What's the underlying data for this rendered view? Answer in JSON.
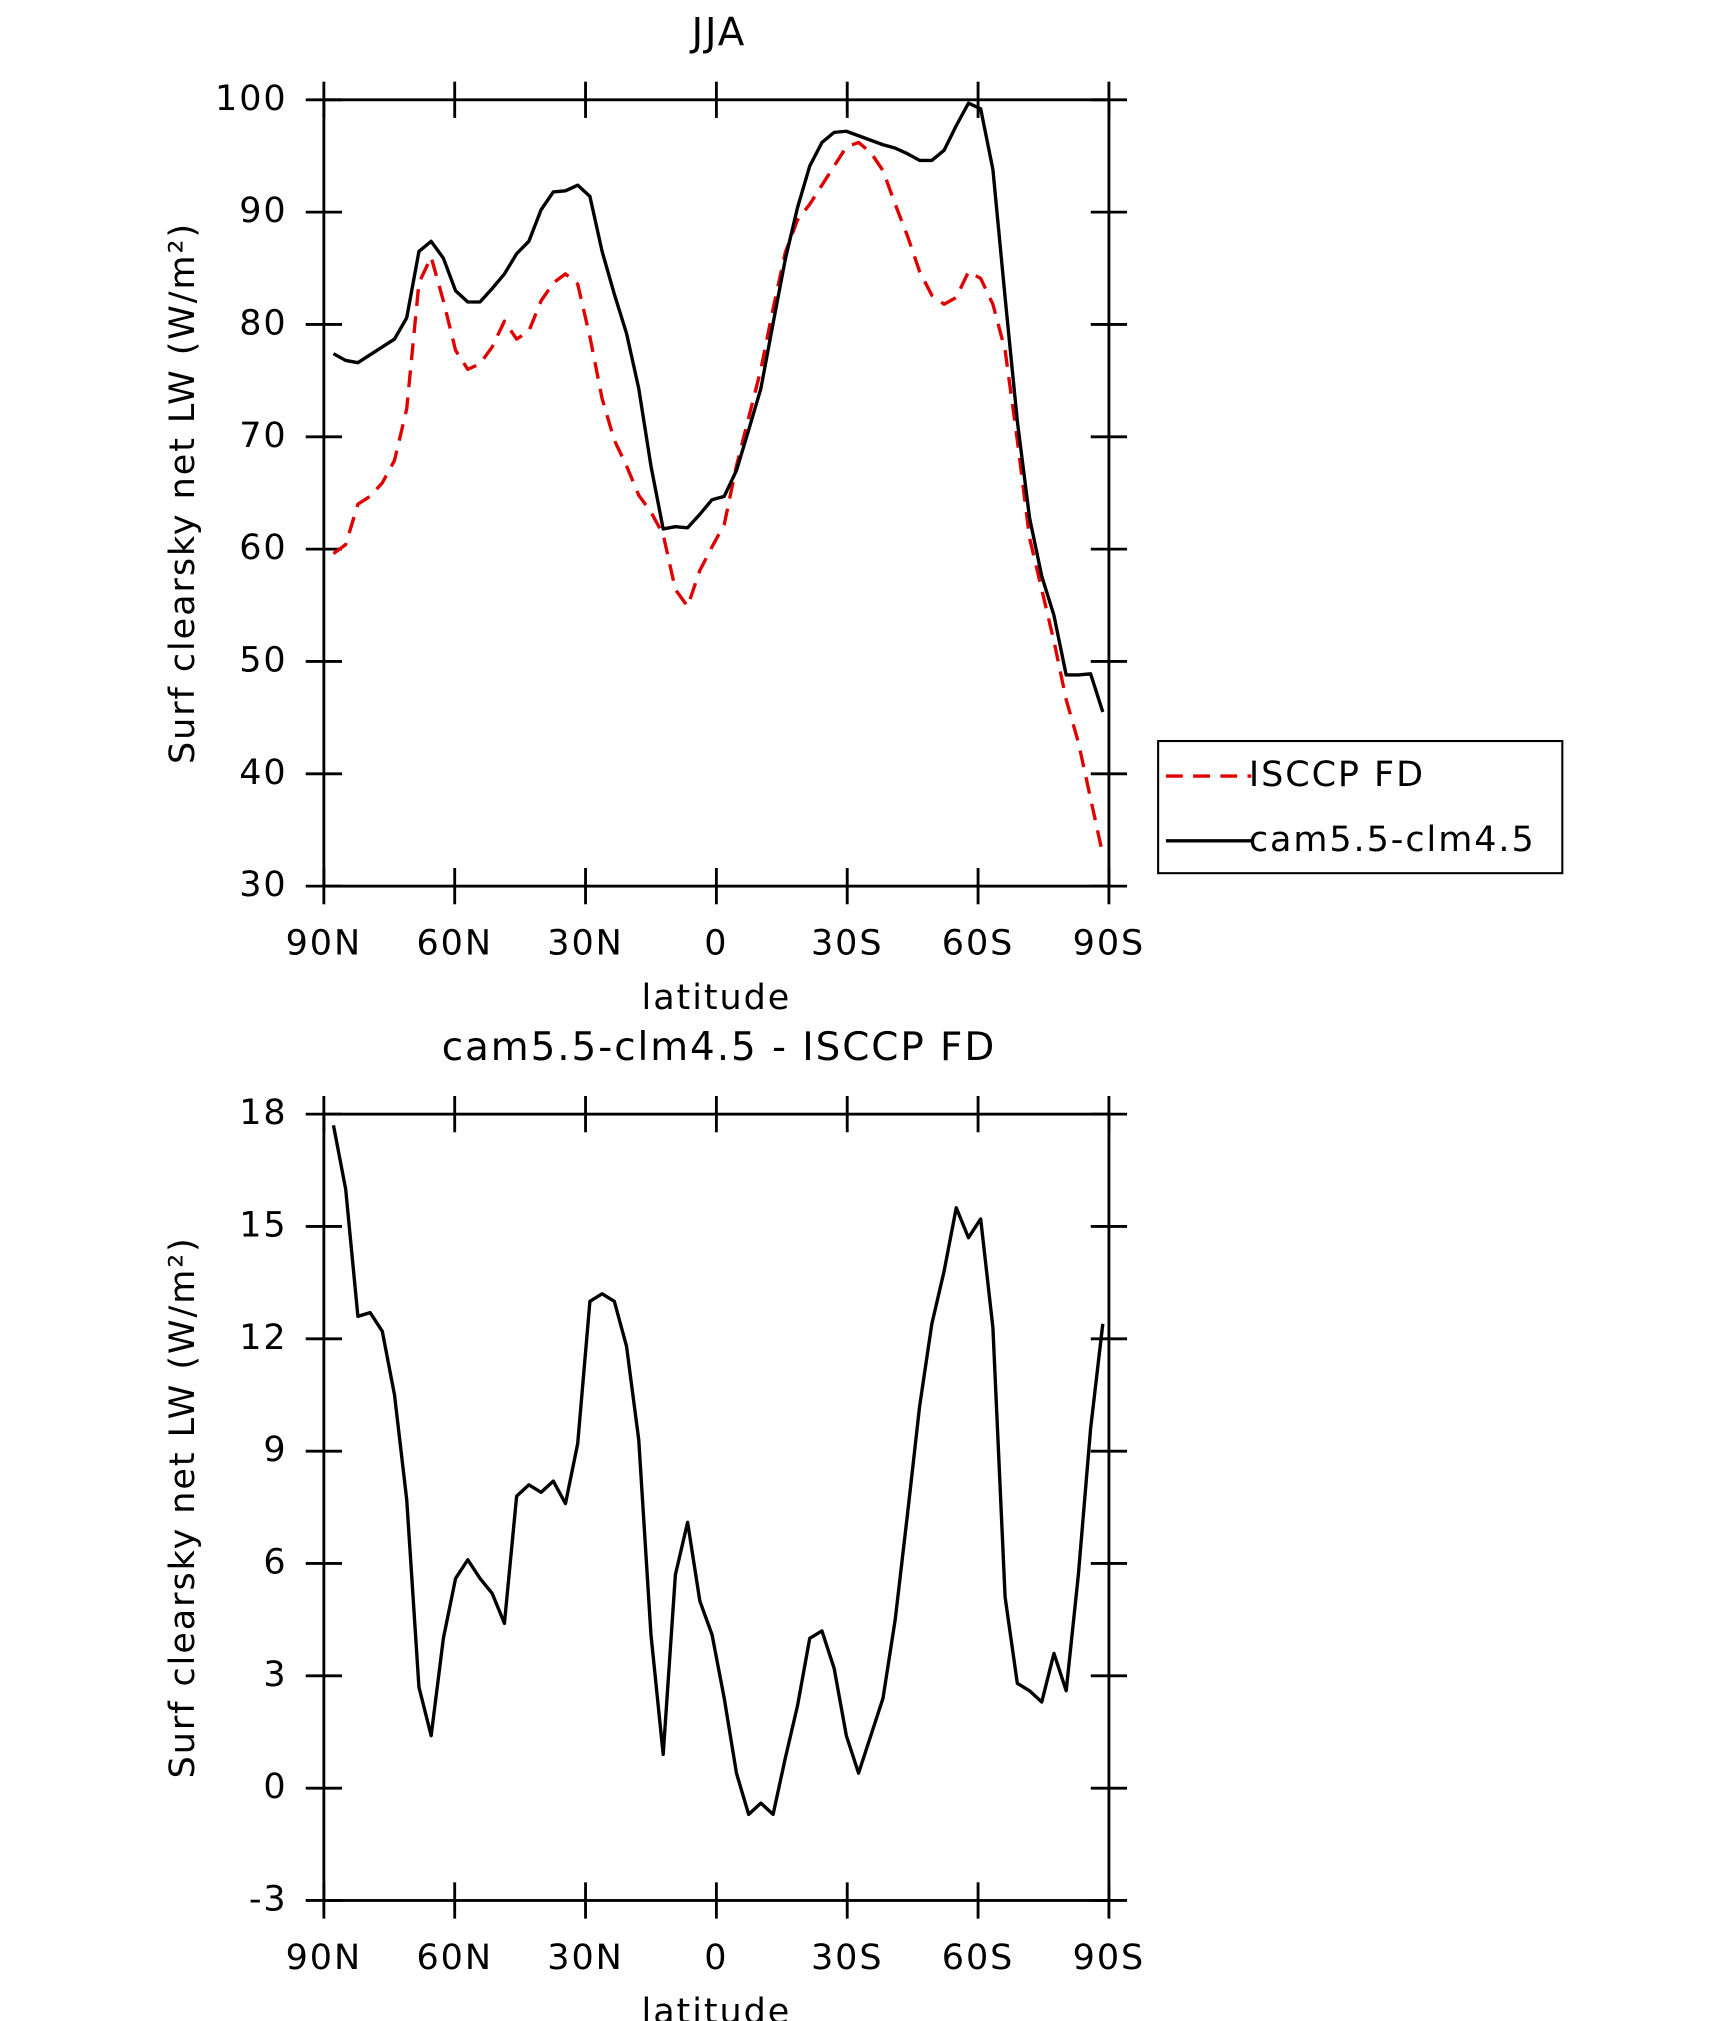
{
  "chart_data": [
    {
      "type": "line",
      "title": "JJA",
      "xlabel": "latitude",
      "ylabel": "Surf clearsky net LW (W/m²)",
      "x": [
        87.8,
        85.0,
        82.2,
        79.4,
        76.6,
        73.8,
        71.0,
        68.2,
        65.4,
        62.6,
        59.8,
        57.0,
        54.2,
        51.4,
        48.6,
        45.8,
        43.0,
        40.2,
        37.4,
        34.6,
        31.8,
        29.0,
        26.2,
        23.4,
        20.6,
        17.8,
        15.0,
        12.2,
        9.4,
        6.6,
        3.8,
        1.0,
        -1.8,
        -4.6,
        -7.4,
        -10.2,
        -13.0,
        -15.8,
        -18.6,
        -21.4,
        -24.2,
        -27.0,
        -29.8,
        -32.6,
        -35.4,
        -38.2,
        -41.0,
        -43.8,
        -46.6,
        -49.4,
        -52.2,
        -55.0,
        -57.8,
        -60.6,
        -63.4,
        -66.2,
        -69.0,
        -71.8,
        -74.6,
        -77.4,
        -80.2,
        -83.0,
        -85.8,
        -88.6
      ],
      "series": [
        {
          "name": "ISCCP FD",
          "color": "#e00000",
          "dashed": true,
          "values": [
            59.6,
            60.4,
            64.0,
            64.7,
            65.9,
            67.9,
            72.5,
            83.7,
            86.0,
            82.1,
            77.7,
            76.0,
            76.5,
            78.0,
            80.3,
            78.7,
            79.4,
            82.1,
            83.7,
            84.5,
            83.6,
            78.9,
            73.4,
            69.7,
            67.4,
            64.8,
            63.3,
            61.3,
            56.4,
            54.9,
            58.1,
            60.2,
            62.2,
            67.4,
            71.7,
            76.0,
            81.4,
            86.4,
            89.3,
            90.7,
            92.4,
            94.1,
            95.8,
            96.2,
            95.3,
            93.7,
            90.7,
            87.9,
            84.7,
            82.6,
            81.8,
            82.4,
            84.7,
            84.1,
            81.8,
            77.7,
            69.7,
            61.0,
            56.4,
            51.8,
            46.6,
            42.8,
            37.8,
            32.8
          ]
        },
        {
          "name": "cam5.5-clm4.5",
          "color": "#000000",
          "dashed": false,
          "values": [
            77.4,
            76.8,
            76.6,
            77.3,
            78.0,
            78.7,
            80.6,
            86.5,
            87.4,
            85.9,
            83.0,
            82.0,
            82.0,
            83.2,
            84.5,
            86.3,
            87.4,
            90.2,
            91.8,
            91.9,
            92.4,
            91.4,
            86.5,
            82.7,
            79.2,
            74.3,
            67.4,
            61.8,
            62.0,
            61.9,
            63.1,
            64.4,
            64.7,
            67.0,
            70.6,
            74.3,
            80.1,
            85.8,
            90.4,
            94.1,
            96.2,
            97.1,
            97.2,
            96.8,
            96.4,
            96.0,
            95.7,
            95.2,
            94.6,
            94.6,
            95.5,
            97.7,
            99.7,
            99.2,
            93.8,
            82.4,
            71.4,
            62.8,
            57.6,
            54.1,
            48.8,
            48.8,
            48.9,
            45.5
          ]
        }
      ],
      "xlim": [
        90,
        -90
      ],
      "xticks": [
        {
          "value": 90,
          "label": "90N"
        },
        {
          "value": 60,
          "label": "60N"
        },
        {
          "value": 30,
          "label": "30N"
        },
        0,
        {
          "value": -30,
          "label": "30S"
        },
        {
          "value": -60,
          "label": "60S"
        },
        {
          "value": -90,
          "label": "90S"
        }
      ],
      "ylim": [
        30,
        100
      ],
      "yticks": [
        30,
        40,
        50,
        60,
        70,
        80,
        90,
        100
      ],
      "legend": "outside-right"
    },
    {
      "type": "line",
      "title": "cam5.5-clm4.5 - ISCCP FD",
      "xlabel": "latitude",
      "ylabel": "Surf clearsky net LW (W/m²)",
      "x": [
        87.8,
        85.0,
        82.2,
        79.4,
        76.6,
        73.8,
        71.0,
        68.2,
        65.4,
        62.6,
        59.8,
        57.0,
        54.2,
        51.4,
        48.6,
        45.8,
        43.0,
        40.2,
        37.4,
        34.6,
        31.8,
        29.0,
        26.2,
        23.4,
        20.6,
        17.8,
        15.0,
        12.2,
        9.4,
        6.6,
        3.8,
        1.0,
        -1.8,
        -4.6,
        -7.4,
        -10.2,
        -13.0,
        -15.8,
        -18.6,
        -21.4,
        -24.2,
        -27.0,
        -29.8,
        -32.6,
        -35.4,
        -38.2,
        -41.0,
        -43.8,
        -46.6,
        -49.4,
        -52.2,
        -55.0,
        -57.8,
        -60.6,
        -63.4,
        -66.2,
        -69.0,
        -71.8,
        -74.6,
        -77.4,
        -80.2,
        -83.0,
        -85.8,
        -88.6
      ],
      "values": [
        17.7,
        16.0,
        12.6,
        12.7,
        12.2,
        10.5,
        7.7,
        2.7,
        1.4,
        4.0,
        5.6,
        6.1,
        5.6,
        5.2,
        4.4,
        7.8,
        8.1,
        7.9,
        8.2,
        7.6,
        9.2,
        13.0,
        13.2,
        13.0,
        11.8,
        9.3,
        4.1,
        0.9,
        5.7,
        7.1,
        5.0,
        4.1,
        2.4,
        0.4,
        -0.7,
        -0.4,
        -0.7,
        0.8,
        2.2,
        4.0,
        4.2,
        3.2,
        1.4,
        0.4,
        1.4,
        2.4,
        4.5,
        7.3,
        10.2,
        12.4,
        13.8,
        15.5,
        14.7,
        15.2,
        12.3,
        5.1,
        2.8,
        2.6,
        2.3,
        3.6,
        2.6,
        5.7,
        9.6,
        12.4
      ],
      "color": "#000000",
      "xlim": [
        90,
        -90
      ],
      "xticks": [
        {
          "value": 90,
          "label": "90N"
        },
        {
          "value": 60,
          "label": "60N"
        },
        {
          "value": 30,
          "label": "30N"
        },
        0,
        {
          "value": -30,
          "label": "30S"
        },
        {
          "value": -60,
          "label": "60S"
        },
        {
          "value": -90,
          "label": "90S"
        }
      ],
      "ylim": [
        -3,
        18
      ],
      "yticks": [
        -3,
        0,
        3,
        6,
        9,
        12,
        15,
        18
      ]
    }
  ]
}
